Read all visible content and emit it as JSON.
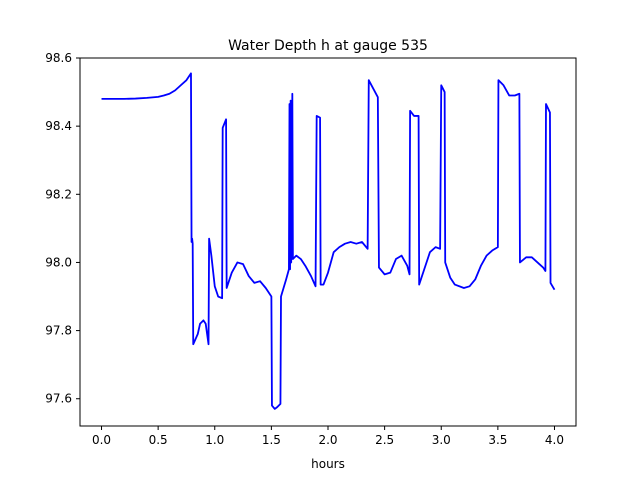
{
  "chart_data": {
    "type": "line",
    "title": "Water Depth h at gauge 535",
    "xlabel": "hours",
    "ylabel": "",
    "xlim": [
      -0.19,
      4.19
    ],
    "ylim": [
      97.52,
      98.6
    ],
    "xticks": [
      0.0,
      0.5,
      1.0,
      1.5,
      2.0,
      2.5,
      3.0,
      3.5,
      4.0
    ],
    "xtick_labels": [
      "0.0",
      "0.5",
      "1.0",
      "1.5",
      "2.0",
      "2.5",
      "3.0",
      "3.5",
      "4.0"
    ],
    "yticks": [
      97.6,
      97.8,
      98.0,
      98.2,
      98.4,
      98.6
    ],
    "ytick_labels": [
      "97.6",
      "97.8",
      "98.0",
      "98.2",
      "98.4",
      "98.6"
    ],
    "grid": false,
    "legend": "none",
    "series": [
      {
        "name": "",
        "color": "#0000ff",
        "points": [
          [
            0.0,
            98.48
          ],
          [
            0.1,
            98.48
          ],
          [
            0.2,
            98.48
          ],
          [
            0.3,
            98.481
          ],
          [
            0.4,
            98.483
          ],
          [
            0.5,
            98.486
          ],
          [
            0.55,
            98.49
          ],
          [
            0.6,
            98.495
          ],
          [
            0.65,
            98.505
          ],
          [
            0.7,
            98.52
          ],
          [
            0.75,
            98.535
          ],
          [
            0.79,
            98.555
          ],
          [
            0.795,
            98.06
          ],
          [
            0.8,
            98.07
          ],
          [
            0.805,
            98.055
          ],
          [
            0.81,
            97.76
          ],
          [
            0.85,
            97.79
          ],
          [
            0.87,
            97.82
          ],
          [
            0.9,
            97.83
          ],
          [
            0.92,
            97.82
          ],
          [
            0.945,
            97.76
          ],
          [
            0.95,
            98.07
          ],
          [
            0.97,
            98.02
          ],
          [
            1.0,
            97.93
          ],
          [
            1.03,
            97.9
          ],
          [
            1.065,
            97.895
          ],
          [
            1.07,
            98.395
          ],
          [
            1.1,
            98.42
          ],
          [
            1.105,
            97.925
          ],
          [
            1.15,
            97.97
          ],
          [
            1.2,
            98.0
          ],
          [
            1.25,
            97.995
          ],
          [
            1.3,
            97.96
          ],
          [
            1.35,
            97.94
          ],
          [
            1.4,
            97.945
          ],
          [
            1.45,
            97.925
          ],
          [
            1.5,
            97.9
          ],
          [
            1.505,
            97.58
          ],
          [
            1.53,
            97.57
          ],
          [
            1.55,
            97.575
          ],
          [
            1.58,
            97.585
          ],
          [
            1.585,
            97.9
          ],
          [
            1.63,
            97.95
          ],
          [
            1.655,
            97.98
          ],
          [
            1.66,
            98.465
          ],
          [
            1.665,
            97.98
          ],
          [
            1.67,
            98.475
          ],
          [
            1.675,
            98.0
          ],
          [
            1.685,
            98.495
          ],
          [
            1.69,
            98.01
          ],
          [
            1.72,
            98.02
          ],
          [
            1.76,
            98.01
          ],
          [
            1.8,
            97.99
          ],
          [
            1.85,
            97.96
          ],
          [
            1.89,
            97.93
          ],
          [
            1.9,
            98.43
          ],
          [
            1.93,
            98.425
          ],
          [
            1.935,
            97.935
          ],
          [
            1.96,
            97.935
          ],
          [
            2.0,
            97.97
          ],
          [
            2.05,
            98.03
          ],
          [
            2.1,
            98.045
          ],
          [
            2.15,
            98.055
          ],
          [
            2.2,
            98.06
          ],
          [
            2.25,
            98.055
          ],
          [
            2.3,
            98.06
          ],
          [
            2.35,
            98.04
          ],
          [
            2.36,
            98.535
          ],
          [
            2.4,
            98.51
          ],
          [
            2.44,
            98.485
          ],
          [
            2.45,
            97.985
          ],
          [
            2.5,
            97.965
          ],
          [
            2.55,
            97.97
          ],
          [
            2.6,
            98.01
          ],
          [
            2.65,
            98.02
          ],
          [
            2.7,
            97.99
          ],
          [
            2.72,
            97.965
          ],
          [
            2.725,
            98.445
          ],
          [
            2.76,
            98.43
          ],
          [
            2.8,
            98.43
          ],
          [
            2.805,
            97.935
          ],
          [
            2.85,
            97.98
          ],
          [
            2.9,
            98.03
          ],
          [
            2.95,
            98.045
          ],
          [
            2.99,
            98.04
          ],
          [
            3.0,
            98.52
          ],
          [
            3.03,
            98.5
          ],
          [
            3.035,
            98.0
          ],
          [
            3.08,
            97.955
          ],
          [
            3.12,
            97.935
          ],
          [
            3.2,
            97.925
          ],
          [
            3.25,
            97.93
          ],
          [
            3.3,
            97.95
          ],
          [
            3.35,
            97.99
          ],
          [
            3.4,
            98.02
          ],
          [
            3.45,
            98.035
          ],
          [
            3.5,
            98.045
          ],
          [
            3.505,
            98.535
          ],
          [
            3.55,
            98.52
          ],
          [
            3.6,
            98.49
          ],
          [
            3.65,
            98.49
          ],
          [
            3.69,
            98.495
          ],
          [
            3.695,
            98.0
          ],
          [
            3.75,
            98.015
          ],
          [
            3.8,
            98.015
          ],
          [
            3.85,
            98.0
          ],
          [
            3.9,
            97.985
          ],
          [
            3.92,
            97.975
          ],
          [
            3.925,
            98.465
          ],
          [
            3.96,
            98.44
          ],
          [
            3.965,
            97.94
          ],
          [
            4.0,
            97.92
          ]
        ]
      }
    ]
  }
}
